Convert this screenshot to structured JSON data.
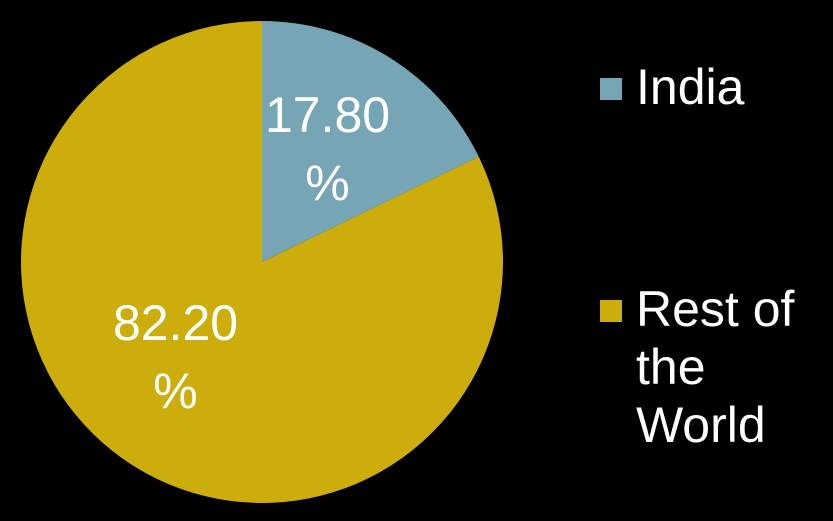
{
  "chart_data": {
    "type": "pie",
    "slices": [
      {
        "name": "India",
        "value": 17.8,
        "label": "17.80 %",
        "color": "#76a5b5"
      },
      {
        "name": "Rest of the World",
        "value": 82.2,
        "label": "82.20 %",
        "color": "#ccad0c"
      }
    ],
    "legend": {
      "placement": "right",
      "items": [
        {
          "label": "India",
          "color": "#76a5b5"
        },
        {
          "label": "Rest of the World",
          "color": "#ccad0c"
        }
      ]
    },
    "title": "",
    "background": "#000000"
  }
}
